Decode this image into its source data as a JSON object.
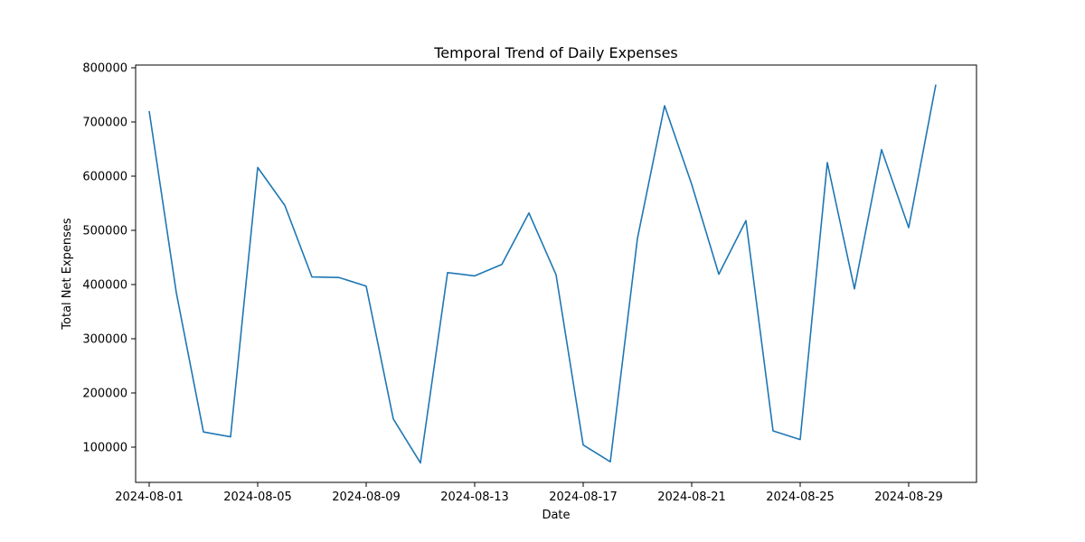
{
  "chart_data": {
    "type": "line",
    "title": "Temporal Trend of Daily Expenses",
    "xlabel": "Date",
    "ylabel": "Total Net Expenses",
    "x_tick_labels": [
      "2024-08-01",
      "2024-08-05",
      "2024-08-09",
      "2024-08-13",
      "2024-08-17",
      "2024-08-21",
      "2024-08-25",
      "2024-08-29"
    ],
    "y_tick_labels": [
      "100000",
      "200000",
      "300000",
      "400000",
      "500000",
      "600000",
      "700000",
      "800000"
    ],
    "ylim": [
      35000,
      805000
    ],
    "xlim": [
      "2024-07-31T12:00",
      "2024-08-31T12:00"
    ],
    "grid": false,
    "line_color": "#1f77b4",
    "series": [
      {
        "x": [
          "2024-08-01",
          "2024-08-02",
          "2024-08-03",
          "2024-08-04",
          "2024-08-05",
          "2024-08-06",
          "2024-08-07",
          "2024-08-08",
          "2024-08-09",
          "2024-08-10",
          "2024-08-11",
          "2024-08-12",
          "2024-08-13",
          "2024-08-14",
          "2024-08-15",
          "2024-08-16",
          "2024-08-17",
          "2024-08-18",
          "2024-08-19",
          "2024-08-20",
          "2024-08-21",
          "2024-08-22",
          "2024-08-23",
          "2024-08-24",
          "2024-08-25",
          "2024-08-26",
          "2024-08-27",
          "2024-08-28",
          "2024-08-29",
          "2024-08-30"
        ],
        "values": [
          720000,
          385000,
          128000,
          119000,
          616000,
          546000,
          414000,
          413000,
          397000,
          152000,
          71000,
          422000,
          416000,
          437000,
          532000,
          418000,
          104000,
          73000,
          485000,
          730000,
          585000,
          419000,
          518000,
          130000,
          114000,
          625000,
          392000,
          649000,
          505000,
          769000
        ]
      }
    ]
  }
}
